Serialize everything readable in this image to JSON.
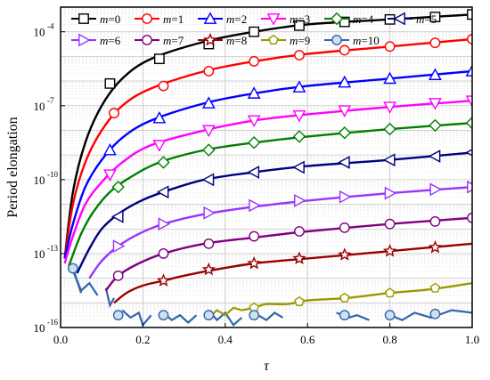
{
  "chart_data": {
    "type": "line",
    "title": "",
    "xlabel": "τ",
    "ylabel": "Period elongation",
    "xlim": [
      0,
      1
    ],
    "ylim_log10": [
      -16,
      -3
    ],
    "xticks": [
      0.0,
      0.2,
      0.4,
      0.6,
      0.8,
      1.0
    ],
    "xtick_labels": [
      "0.0",
      "0.2",
      "0.4",
      "0.6",
      "0.8",
      "1.0"
    ],
    "yticks_log10": [
      -16,
      -13,
      -10,
      -7,
      -4
    ],
    "ytick_base": "10",
    "ytick_exponents": [
      "-16",
      "-13",
      "-10",
      "-7",
      "-4"
    ],
    "y_scale": "log",
    "grid": true,
    "legend_position": "top (two rows inside plot)",
    "series": [
      {
        "name": "m=0",
        "color": "#000000",
        "marker": "square",
        "points": [
          [
            0.01,
            -13.2
          ],
          [
            0.03,
            -10.5
          ],
          [
            0.06,
            -8.5
          ],
          [
            0.1,
            -7.0
          ],
          [
            0.15,
            -5.9
          ],
          [
            0.22,
            -5.1
          ],
          [
            0.35,
            -4.4
          ],
          [
            0.47,
            -4.0
          ],
          [
            0.6,
            -3.7
          ],
          [
            0.8,
            -3.5
          ],
          [
            1.0,
            -3.3
          ]
        ],
        "marker_points": [
          [
            0.12,
            -6.1
          ],
          [
            0.24,
            -5.1
          ],
          [
            0.36,
            -4.5
          ],
          [
            0.47,
            -4.0
          ],
          [
            0.58,
            -3.75
          ],
          [
            0.69,
            -3.6
          ],
          [
            0.8,
            -3.5
          ],
          [
            0.91,
            -3.4
          ],
          [
            1.0,
            -3.3
          ]
        ]
      },
      {
        "name": "m=1",
        "color": "#ff0000",
        "marker": "circle",
        "points": [
          [
            0.01,
            -13.2
          ],
          [
            0.03,
            -11.0
          ],
          [
            0.06,
            -9.3
          ],
          [
            0.1,
            -8.0
          ],
          [
            0.15,
            -7.0
          ],
          [
            0.22,
            -6.3
          ],
          [
            0.35,
            -5.6
          ],
          [
            0.47,
            -5.2
          ],
          [
            0.6,
            -4.9
          ],
          [
            0.8,
            -4.6
          ],
          [
            1.0,
            -4.3
          ]
        ],
        "marker_points": [
          [
            0.13,
            -7.3
          ],
          [
            0.25,
            -6.2
          ],
          [
            0.36,
            -5.6
          ],
          [
            0.47,
            -5.2
          ],
          [
            0.58,
            -4.95
          ],
          [
            0.69,
            -4.75
          ],
          [
            0.8,
            -4.6
          ],
          [
            0.91,
            -4.45
          ],
          [
            1.0,
            -4.3
          ]
        ]
      },
      {
        "name": "m=2",
        "color": "#0000ff",
        "marker": "triangle-up",
        "points": [
          [
            0.01,
            -13.2
          ],
          [
            0.03,
            -11.8
          ],
          [
            0.06,
            -10.3
          ],
          [
            0.1,
            -9.2
          ],
          [
            0.15,
            -8.3
          ],
          [
            0.22,
            -7.6
          ],
          [
            0.35,
            -6.9
          ],
          [
            0.47,
            -6.5
          ],
          [
            0.6,
            -6.2
          ],
          [
            0.8,
            -5.9
          ],
          [
            1.0,
            -5.6
          ]
        ],
        "marker_points": [
          [
            0.12,
            -8.8
          ],
          [
            0.24,
            -7.5
          ],
          [
            0.36,
            -6.9
          ],
          [
            0.47,
            -6.5
          ],
          [
            0.58,
            -6.25
          ],
          [
            0.69,
            -6.05
          ],
          [
            0.8,
            -5.9
          ],
          [
            0.91,
            -5.75
          ],
          [
            1.0,
            -5.6
          ]
        ]
      },
      {
        "name": "m=3",
        "color": "#ff00ff",
        "marker": "triangle-down",
        "points": [
          [
            0.01,
            -13.4
          ],
          [
            0.03,
            -12.3
          ],
          [
            0.06,
            -11.0
          ],
          [
            0.1,
            -10.1
          ],
          [
            0.15,
            -9.3
          ],
          [
            0.22,
            -8.6
          ],
          [
            0.35,
            -8.0
          ],
          [
            0.47,
            -7.6
          ],
          [
            0.6,
            -7.35
          ],
          [
            0.8,
            -7.05
          ],
          [
            1.0,
            -6.8
          ]
        ],
        "marker_points": [
          [
            0.12,
            -9.8
          ],
          [
            0.24,
            -8.6
          ],
          [
            0.36,
            -8.0
          ],
          [
            0.47,
            -7.6
          ],
          [
            0.58,
            -7.4
          ],
          [
            0.69,
            -7.2
          ],
          [
            0.8,
            -7.05
          ],
          [
            0.91,
            -6.9
          ],
          [
            1.0,
            -6.8
          ]
        ]
      },
      {
        "name": "m=4",
        "color": "#008000",
        "marker": "diamond",
        "points": [
          [
            0.02,
            -13.5
          ],
          [
            0.05,
            -12.2
          ],
          [
            0.08,
            -11.3
          ],
          [
            0.12,
            -10.5
          ],
          [
            0.17,
            -9.9
          ],
          [
            0.24,
            -9.3
          ],
          [
            0.35,
            -8.8
          ],
          [
            0.47,
            -8.5
          ],
          [
            0.6,
            -8.25
          ],
          [
            0.8,
            -7.95
          ],
          [
            1.0,
            -7.7
          ]
        ],
        "marker_points": [
          [
            0.14,
            -10.3
          ],
          [
            0.25,
            -9.3
          ],
          [
            0.36,
            -8.8
          ],
          [
            0.47,
            -8.5
          ],
          [
            0.58,
            -8.25
          ],
          [
            0.69,
            -8.1
          ],
          [
            0.8,
            -7.95
          ],
          [
            0.91,
            -7.8
          ],
          [
            1.0,
            -7.7
          ]
        ]
      },
      {
        "name": "m=5",
        "color": "#000080",
        "marker": "triangle-left",
        "points": [
          [
            0.04,
            -13.8
          ],
          [
            0.07,
            -12.8
          ],
          [
            0.1,
            -12.0
          ],
          [
            0.14,
            -11.4
          ],
          [
            0.19,
            -10.9
          ],
          [
            0.25,
            -10.5
          ],
          [
            0.35,
            -10.0
          ],
          [
            0.47,
            -9.7
          ],
          [
            0.6,
            -9.45
          ],
          [
            0.8,
            -9.2
          ],
          [
            1.0,
            -8.9
          ]
        ],
        "marker_points": [
          [
            0.14,
            -11.5
          ],
          [
            0.25,
            -10.5
          ],
          [
            0.36,
            -10.0
          ],
          [
            0.47,
            -9.7
          ],
          [
            0.58,
            -9.5
          ],
          [
            0.69,
            -9.3
          ],
          [
            0.8,
            -9.2
          ],
          [
            0.91,
            -9.05
          ],
          [
            1.0,
            -8.9
          ]
        ]
      },
      {
        "name": "m=6",
        "color": "#9933ff",
        "marker": "triangle-right",
        "points": [
          [
            0.07,
            -14.0
          ],
          [
            0.1,
            -13.3
          ],
          [
            0.14,
            -12.7
          ],
          [
            0.19,
            -12.2
          ],
          [
            0.25,
            -11.8
          ],
          [
            0.35,
            -11.4
          ],
          [
            0.47,
            -11.1
          ],
          [
            0.6,
            -10.85
          ],
          [
            0.8,
            -10.55
          ],
          [
            1.0,
            -10.3
          ]
        ],
        "marker_points": [
          [
            0.14,
            -12.7
          ],
          [
            0.25,
            -11.8
          ],
          [
            0.36,
            -11.35
          ],
          [
            0.47,
            -11.05
          ],
          [
            0.58,
            -10.85
          ],
          [
            0.69,
            -10.7
          ],
          [
            0.8,
            -10.55
          ],
          [
            0.91,
            -10.4
          ],
          [
            1.0,
            -10.3
          ]
        ]
      },
      {
        "name": "m=7",
        "color": "#800080",
        "marker": "circle",
        "points": [
          [
            0.11,
            -14.5
          ],
          [
            0.14,
            -13.9
          ],
          [
            0.19,
            -13.4
          ],
          [
            0.25,
            -13.0
          ],
          [
            0.35,
            -12.6
          ],
          [
            0.47,
            -12.35
          ],
          [
            0.6,
            -12.1
          ],
          [
            0.8,
            -11.8
          ],
          [
            1.0,
            -11.55
          ]
        ],
        "marker_points": [
          [
            0.14,
            -13.9
          ],
          [
            0.25,
            -13.0
          ],
          [
            0.36,
            -12.6
          ],
          [
            0.47,
            -12.3
          ],
          [
            0.58,
            -12.1
          ],
          [
            0.69,
            -11.95
          ],
          [
            0.8,
            -11.8
          ],
          [
            0.91,
            -11.7
          ],
          [
            1.0,
            -11.55
          ]
        ]
      },
      {
        "name": "m=8",
        "color": "#990000",
        "marker": "star",
        "points": [
          [
            0.13,
            -15.0
          ],
          [
            0.16,
            -14.6
          ],
          [
            0.2,
            -14.3
          ],
          [
            0.25,
            -14.1
          ],
          [
            0.3,
            -13.9
          ],
          [
            0.36,
            -13.7
          ],
          [
            0.47,
            -13.4
          ],
          [
            0.6,
            -13.2
          ],
          [
            0.8,
            -12.9
          ],
          [
            1.0,
            -12.6
          ]
        ],
        "marker_points": [
          [
            0.25,
            -14.1
          ],
          [
            0.36,
            -13.65
          ],
          [
            0.47,
            -13.4
          ],
          [
            0.58,
            -13.2
          ],
          [
            0.69,
            -13.05
          ],
          [
            0.8,
            -12.9
          ],
          [
            0.91,
            -12.75
          ]
        ]
      },
      {
        "name": "m=9",
        "color": "#999900",
        "marker": "pentagon",
        "points": [
          [
            0.44,
            -15.3
          ],
          [
            0.47,
            -15.2
          ],
          [
            0.5,
            -15.05
          ],
          [
            0.55,
            -15.05
          ],
          [
            0.6,
            -14.9
          ],
          [
            0.65,
            -14.85
          ],
          [
            0.7,
            -14.8
          ],
          [
            0.8,
            -14.6
          ],
          [
            0.9,
            -14.45
          ],
          [
            1.0,
            -14.2
          ]
        ],
        "marker_points": [
          [
            0.47,
            -15.2
          ],
          [
            0.58,
            -14.95
          ],
          [
            0.69,
            -14.8
          ],
          [
            0.8,
            -14.6
          ],
          [
            0.91,
            -14.4
          ]
        ]
      },
      {
        "name": "m=10",
        "color": "#3366aa",
        "marker": "circle-dot",
        "points": [
          [
            0.03,
            -13.6
          ],
          [
            0.05,
            -14.6
          ]
        ],
        "marker_points": [
          [
            0.03,
            -13.6
          ],
          [
            0.14,
            -15.5
          ],
          [
            0.25,
            -15.5
          ],
          [
            0.36,
            -15.5
          ],
          [
            0.47,
            -15.5
          ],
          [
            0.69,
            -15.5
          ],
          [
            0.8,
            -15.5
          ],
          [
            0.91,
            -15.45
          ]
        ]
      }
    ],
    "noise_segments": [
      {
        "color": "#3366aa",
        "points": [
          [
            0.03,
            -13.7
          ],
          [
            0.05,
            -14.5
          ],
          [
            0.07,
            -14.2
          ],
          [
            0.09,
            -14.7
          ]
        ]
      },
      {
        "color": "#3366aa",
        "points": [
          [
            0.15,
            -15.3
          ],
          [
            0.17,
            -15.6
          ],
          [
            0.19,
            -15.4
          ],
          [
            0.2,
            -15.9
          ],
          [
            0.22,
            -15.5
          ]
        ]
      },
      {
        "color": "#3366aa",
        "points": [
          [
            0.25,
            -15.4
          ],
          [
            0.27,
            -15.7
          ],
          [
            0.29,
            -15.5
          ],
          [
            0.31,
            -15.8
          ],
          [
            0.33,
            -15.5
          ]
        ]
      },
      {
        "color": "#3366aa",
        "points": [
          [
            0.36,
            -15.3
          ],
          [
            0.38,
            -15.7
          ],
          [
            0.4,
            -15.4
          ],
          [
            0.42,
            -15.9
          ],
          [
            0.44,
            -15.6
          ]
        ]
      },
      {
        "color": "#3366aa",
        "points": [
          [
            0.48,
            -15.5
          ],
          [
            0.5,
            -15.7
          ],
          [
            0.52,
            -15.4
          ],
          [
            0.54,
            -15.6
          ]
        ]
      },
      {
        "color": "#3366aa",
        "points": [
          [
            0.67,
            -15.4
          ],
          [
            0.7,
            -15.6
          ],
          [
            0.72,
            -15.5
          ],
          [
            0.75,
            -15.7
          ]
        ]
      },
      {
        "color": "#3366aa",
        "points": [
          [
            0.8,
            -15.5
          ],
          [
            0.83,
            -15.7
          ],
          [
            0.86,
            -15.4
          ],
          [
            0.9,
            -15.6
          ],
          [
            0.95,
            -15.3
          ],
          [
            1.0,
            -15.4
          ]
        ]
      },
      {
        "color": "#3366aa",
        "points": [
          [
            0.11,
            -14.4
          ],
          [
            0.12,
            -15.1
          ],
          [
            0.13,
            -14.8
          ]
        ]
      },
      {
        "color": "#999900",
        "points": [
          [
            0.36,
            -15.6
          ],
          [
            0.38,
            -15.3
          ],
          [
            0.4,
            -15.5
          ],
          [
            0.42,
            -15.2
          ],
          [
            0.44,
            -15.3
          ]
        ]
      }
    ]
  }
}
